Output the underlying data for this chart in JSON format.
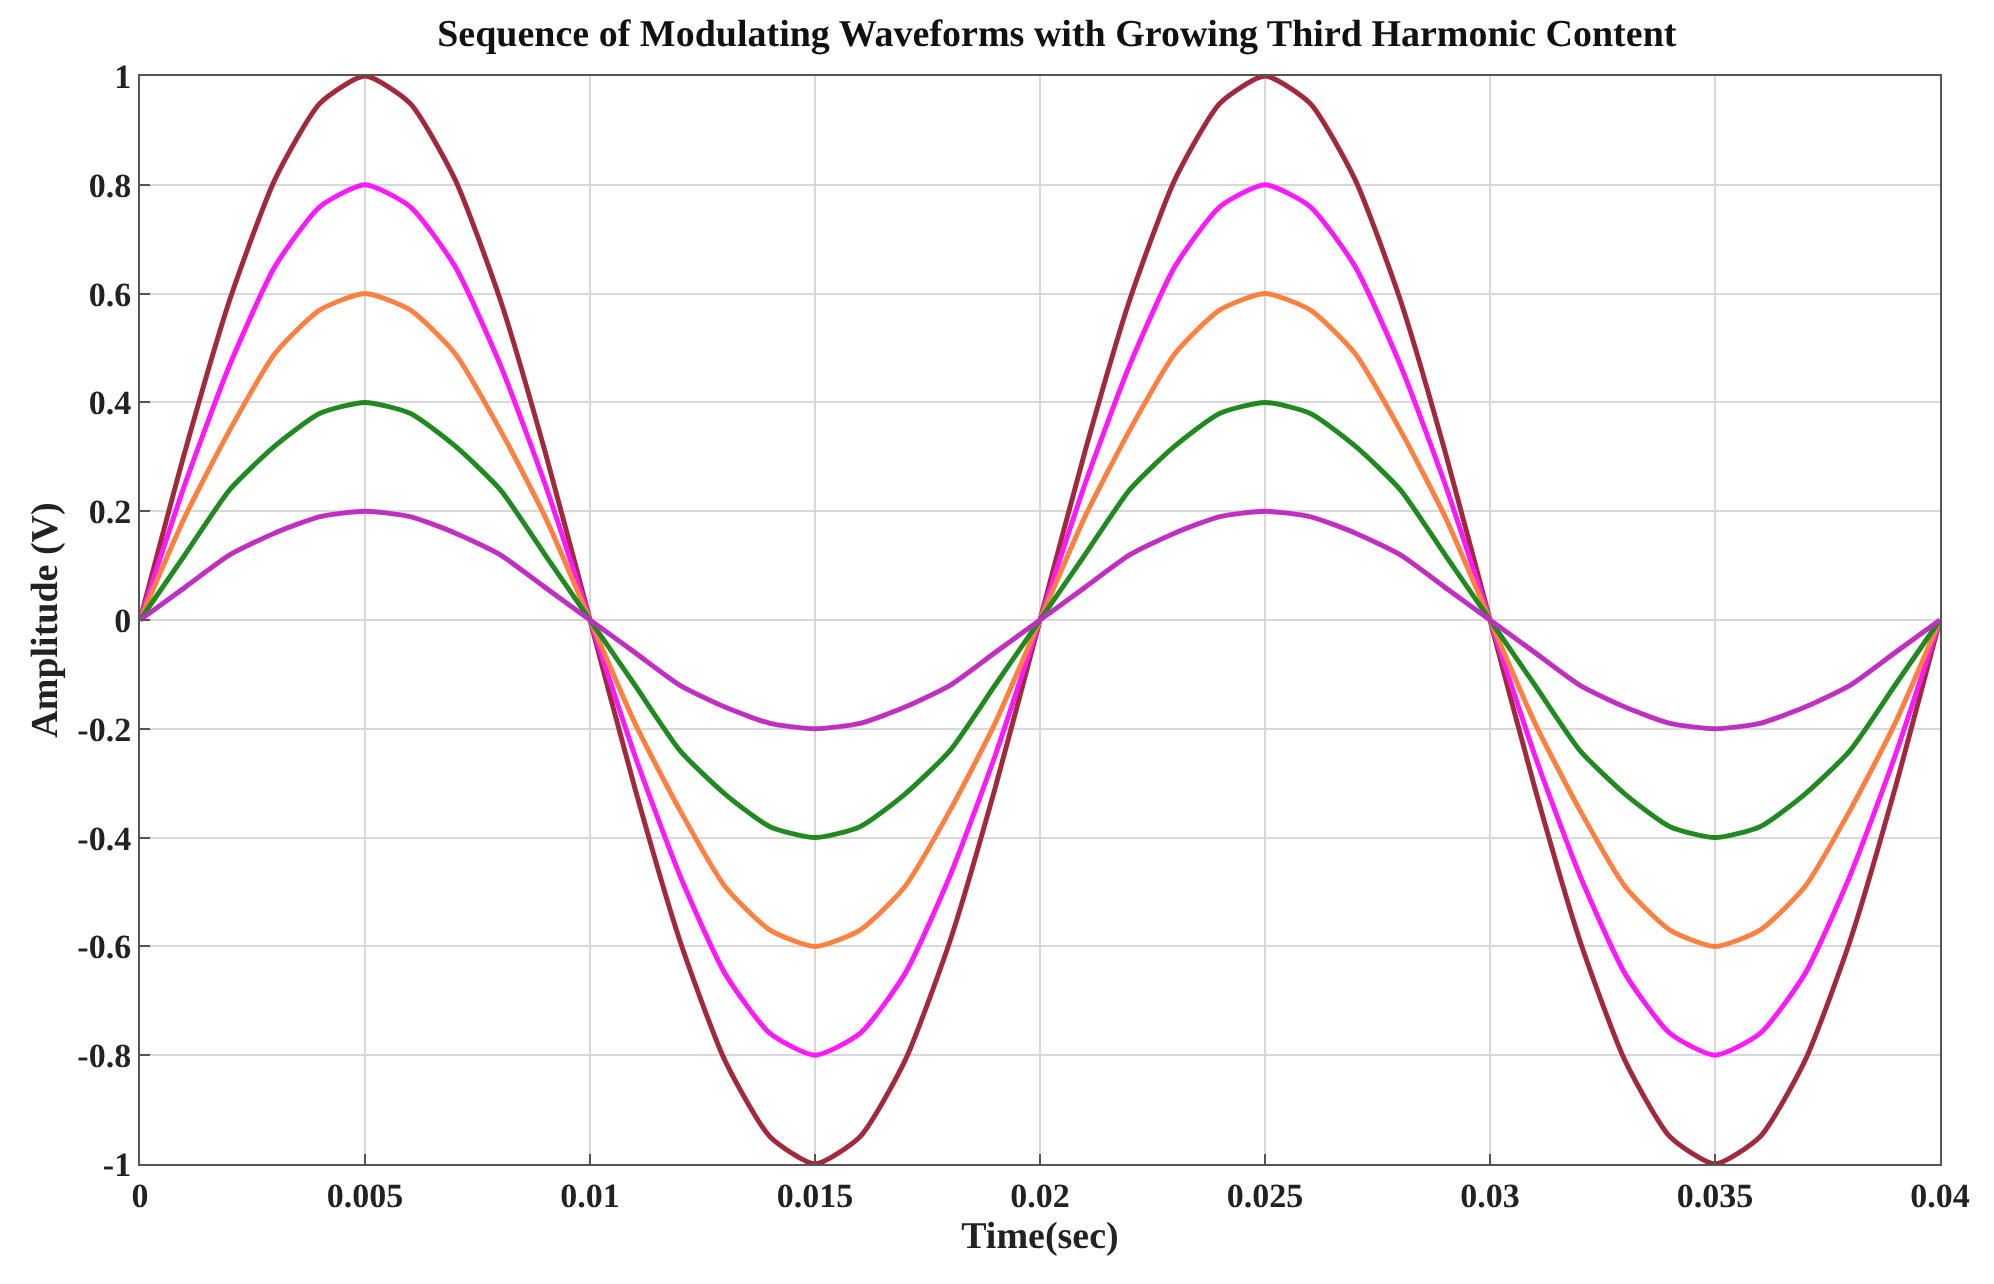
{
  "chart_data": {
    "type": "line",
    "title": "Sequence of Modulating Waveforms with Growing Third Harmonic Content",
    "xlabel": "Time(sec)",
    "ylabel": "Amplitude (V)",
    "x": [
      0,
      0.001,
      0.002,
      0.003,
      0.004,
      0.005,
      0.006,
      0.007,
      0.008,
      0.009,
      0.01,
      0.011,
      0.012,
      0.013,
      0.014,
      0.015,
      0.016,
      0.017,
      0.018,
      0.019,
      0.02,
      0.021,
      0.022,
      0.023,
      0.024,
      0.025,
      0.026,
      0.027,
      0.028,
      0.029,
      0.03,
      0.031,
      0.032,
      0.033,
      0.034,
      0.035,
      0.036,
      0.037,
      0.038,
      0.039,
      0.04
    ],
    "series": [
      {
        "color": "#a02a3c",
        "values": [
          0,
          0.31,
          0.59,
          0.81,
          0.95,
          1,
          0.95,
          0.81,
          0.59,
          0.31,
          0,
          -0.31,
          -0.59,
          -0.81,
          -0.95,
          -1,
          -0.95,
          -0.81,
          -0.59,
          -0.31,
          0,
          0.31,
          0.59,
          0.81,
          0.95,
          1,
          0.95,
          0.81,
          0.59,
          0.31,
          0,
          -0.31,
          -0.59,
          -0.81,
          -0.95,
          -1,
          -0.95,
          -0.81,
          -0.59,
          -0.31,
          0
        ]
      },
      {
        "color": "#ff19ff",
        "values": [
          0,
          0.25,
          0.47,
          0.65,
          0.76,
          0.8,
          0.76,
          0.65,
          0.47,
          0.25,
          0,
          -0.25,
          -0.47,
          -0.65,
          -0.76,
          -0.8,
          -0.76,
          -0.65,
          -0.47,
          -0.25,
          0,
          0.25,
          0.47,
          0.65,
          0.76,
          0.8,
          0.76,
          0.65,
          0.47,
          0.25,
          0,
          -0.25,
          -0.47,
          -0.65,
          -0.76,
          -0.8,
          -0.76,
          -0.65,
          -0.47,
          -0.25,
          0
        ]
      },
      {
        "color": "#ff8040",
        "values": [
          0,
          0.19,
          0.35,
          0.49,
          0.57,
          0.6,
          0.57,
          0.49,
          0.35,
          0.19,
          0,
          -0.19,
          -0.35,
          -0.49,
          -0.57,
          -0.6,
          -0.57,
          -0.49,
          -0.35,
          -0.19,
          0,
          0.19,
          0.35,
          0.49,
          0.57,
          0.6,
          0.57,
          0.49,
          0.35,
          0.19,
          0,
          -0.19,
          -0.35,
          -0.49,
          -0.57,
          -0.6,
          -0.57,
          -0.49,
          -0.35,
          -0.19,
          0
        ]
      },
      {
        "color": "#208a20",
        "values": [
          0,
          0.12,
          0.24,
          0.32,
          0.38,
          0.4,
          0.38,
          0.32,
          0.24,
          0.12,
          0,
          -0.12,
          -0.24,
          -0.32,
          -0.38,
          -0.4,
          -0.38,
          -0.32,
          -0.24,
          -0.12,
          0,
          0.12,
          0.24,
          0.32,
          0.38,
          0.4,
          0.38,
          0.32,
          0.24,
          0.12,
          0,
          -0.12,
          -0.24,
          -0.32,
          -0.38,
          -0.4,
          -0.38,
          -0.32,
          -0.24,
          -0.12,
          0
        ]
      },
      {
        "color": "#c030c0",
        "values": [
          0,
          0.06,
          0.12,
          0.16,
          0.19,
          0.2,
          0.19,
          0.16,
          0.12,
          0.06,
          0,
          -0.06,
          -0.12,
          -0.16,
          -0.19,
          -0.2,
          -0.19,
          -0.16,
          -0.12,
          -0.06,
          0,
          0.06,
          0.12,
          0.16,
          0.19,
          0.2,
          0.19,
          0.16,
          0.12,
          0.06,
          0,
          -0.06,
          -0.12,
          -0.16,
          -0.19,
          -0.2,
          -0.19,
          -0.16,
          -0.12,
          -0.06,
          0
        ]
      }
    ],
    "xlim": [
      0,
      0.04
    ],
    "xticks": [
      0,
      0.005,
      0.01,
      0.015,
      0.02,
      0.025,
      0.03,
      0.035,
      0.04
    ],
    "ylim": [
      -1,
      1
    ],
    "yticks": [
      -1,
      -0.8,
      -0.6,
      -0.4,
      -0.2,
      0,
      0.2,
      0.4,
      0.6,
      0.8,
      1
    ],
    "grid": true,
    "marker": "none",
    "line_style": "solid"
  }
}
